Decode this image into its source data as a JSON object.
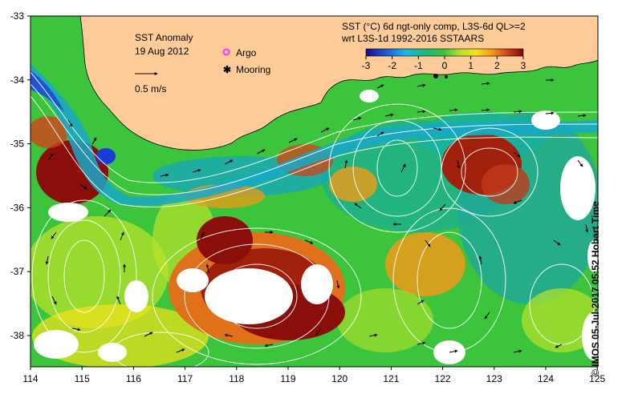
{
  "map": {
    "title": "SST Anomaly",
    "date": "19 Aug 2012",
    "subtitle_line1": "SST (°C) 6d ngt-only comp, L3S-6d QL>=2",
    "subtitle_line2": "wrt L3S-1d 1992-2016 SSTAARS",
    "vector_scale_label": "0.5 m/s",
    "legend": {
      "argo": "Argo",
      "mooring": "Mooring",
      "argo_color": "#ff33ff"
    },
    "colorbar": {
      "ticks": [
        "-3",
        "-2",
        "-1",
        "0",
        "1",
        "2",
        "3"
      ],
      "min": -3,
      "max": 3
    },
    "x_ticks": [
      "114",
      "115",
      "116",
      "117",
      "118",
      "119",
      "120",
      "121",
      "122",
      "123",
      "124",
      "125"
    ],
    "y_ticks": [
      "-33",
      "-34",
      "-35",
      "-36",
      "-37",
      "-38"
    ],
    "lon_range": [
      114,
      125
    ],
    "lat_range": [
      -38.5,
      -33
    ],
    "land_color": "#ffcc99",
    "credit": "© IMOS 05-Jul-2017 05:52 Hobart Time"
  }
}
